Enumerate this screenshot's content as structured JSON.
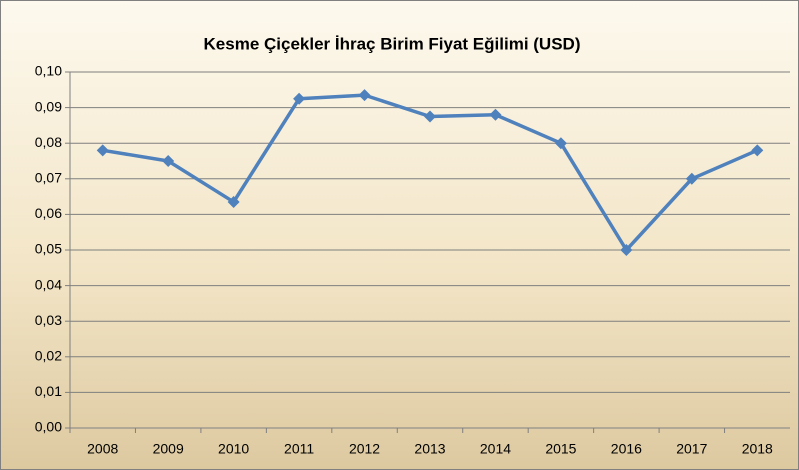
{
  "chart_data": {
    "type": "line",
    "title": "Kesme Çiçekler İhraç Birim Fiyat Eğilimi  (USD)",
    "categories": [
      "2008",
      "2009",
      "2010",
      "2011",
      "2012",
      "2013",
      "2014",
      "2015",
      "2016",
      "2017",
      "2018"
    ],
    "values": [
      0.078,
      0.075,
      0.0635,
      0.0925,
      0.0935,
      0.0875,
      0.088,
      0.08,
      0.05,
      0.07,
      0.078
    ],
    "color": "#4f81bd",
    "ylim": [
      0,
      0.1
    ],
    "yticks": [
      {
        "value": 0,
        "label": "0,00"
      },
      {
        "value": 0.01,
        "label": "0,01"
      },
      {
        "value": 0.02,
        "label": "0,02"
      },
      {
        "value": 0.03,
        "label": "0,03"
      },
      {
        "value": 0.04,
        "label": "0,04"
      },
      {
        "value": 0.05,
        "label": "0,05"
      },
      {
        "value": 0.06,
        "label": "0,06"
      },
      {
        "value": 0.07,
        "label": "0,07"
      },
      {
        "value": 0.08,
        "label": "0,08"
      },
      {
        "value": 0.09,
        "label": "0,09"
      },
      {
        "value": 0.1,
        "label": "0,10"
      }
    ],
    "grid": true
  }
}
